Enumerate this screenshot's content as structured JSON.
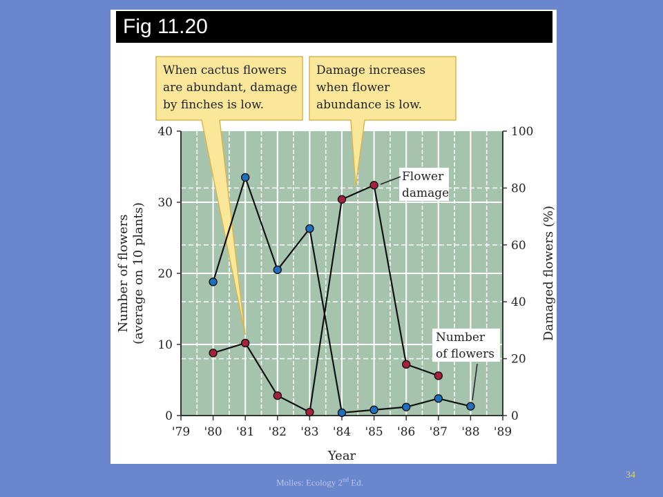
{
  "slide": {
    "title": "Fig 11.20",
    "footer_text": "Molles: Ecology 2",
    "footer_sup": "nd",
    "footer_tail": " Ed.",
    "page_number": "34"
  },
  "colors": {
    "background": "#6a86cc",
    "plot_area": "#a6c4ad",
    "flower_damage": "#a8203e",
    "number_of_flowers": "#1e6fc0",
    "callout_fill": "#fbe79a",
    "callout_border": "#d8b64e"
  },
  "chart_data": {
    "type": "line",
    "xlabel": "Year",
    "ylabel_left": [
      "Number of flowers",
      "(average on 10 plants)"
    ],
    "ylabel_right": "Damaged flowers (%)",
    "x_ticks": [
      "'79",
      "'80",
      "'81",
      "'82",
      "'83",
      "'84",
      "'85",
      "'86",
      "'87",
      "'88",
      "'89"
    ],
    "x_range": [
      1979,
      1989
    ],
    "y_left_range": [
      0,
      40
    ],
    "y_left_ticks": [
      "0",
      "10",
      "20",
      "30",
      "40"
    ],
    "y_right_range": [
      0,
      100
    ],
    "y_right_ticks": [
      "0",
      "20",
      "40",
      "60",
      "80",
      "100"
    ],
    "grid": true,
    "series": [
      {
        "name": "Number of flowers",
        "axis": "left",
        "color": "#1e6fc0",
        "points": [
          {
            "x": 1980,
            "y": 18.8
          },
          {
            "x": 1981,
            "y": 33.5
          },
          {
            "x": 1982,
            "y": 20.5
          },
          {
            "x": 1983,
            "y": 26.3
          },
          {
            "x": 1984,
            "y": 0.4
          },
          {
            "x": 1985,
            "y": 0.8
          },
          {
            "x": 1986,
            "y": 1.2
          },
          {
            "x": 1987,
            "y": 2.4
          },
          {
            "x": 1988,
            "y": 1.3
          }
        ]
      },
      {
        "name": "Flower damage",
        "axis": "right",
        "color": "#a8203e",
        "points": [
          {
            "x": 1980,
            "y": 22
          },
          {
            "x": 1981,
            "y": 25.5
          },
          {
            "x": 1982,
            "y": 7
          },
          {
            "x": 1983,
            "y": 1.2
          },
          {
            "x": 1984,
            "y": 76
          },
          {
            "x": 1985,
            "y": 81
          },
          {
            "x": 1986,
            "y": 18
          },
          {
            "x": 1987,
            "y": 14
          }
        ]
      }
    ],
    "series_labels": {
      "flower_damage": [
        "Flower",
        "damage"
      ],
      "number_of_flowers": [
        "Number",
        "of flowers"
      ]
    },
    "annotations": [
      {
        "lines": [
          "When cactus flowers",
          "are abundant, damage",
          "by finches is low."
        ]
      },
      {
        "lines": [
          "Damage increases",
          "when flower",
          "abundance is low."
        ]
      }
    ]
  }
}
